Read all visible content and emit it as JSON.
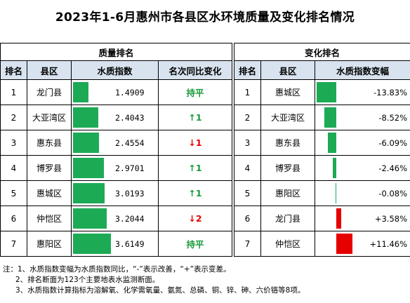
{
  "title": "2023年1-6月惠州市各县区水环境质量及变化排名情况",
  "quality": {
    "section_title": "质量排名",
    "headers": [
      "排名",
      "县区",
      "水质指数",
      "名次同比变化"
    ],
    "max_index": 3.6149,
    "rows": [
      {
        "rank": "1",
        "county": "龙门县",
        "index": 1.4909,
        "index_text": "1.4909",
        "change": "持平",
        "dir": "same"
      },
      {
        "rank": "2",
        "county": "大亚湾区",
        "index": 2.4043,
        "index_text": "2.4043",
        "change": "1",
        "dir": "up"
      },
      {
        "rank": "3",
        "county": "惠东县",
        "index": 2.4554,
        "index_text": "2.4554",
        "change": "1",
        "dir": "down"
      },
      {
        "rank": "4",
        "county": "博罗县",
        "index": 2.9701,
        "index_text": "2.9701",
        "change": "1",
        "dir": "up"
      },
      {
        "rank": "5",
        "county": "惠城区",
        "index": 3.0193,
        "index_text": "3.0193",
        "change": "1",
        "dir": "up"
      },
      {
        "rank": "6",
        "county": "仲恺区",
        "index": 3.2044,
        "index_text": "3.2044",
        "change": "2",
        "dir": "down"
      },
      {
        "rank": "7",
        "county": "惠阳区",
        "index": 3.6149,
        "index_text": "3.6149",
        "change": "持平",
        "dir": "same"
      }
    ]
  },
  "variation": {
    "section_title": "变化排名",
    "headers": [
      "排名",
      "县区",
      "水质指数变幅"
    ],
    "max_abs": 13.83,
    "rows": [
      {
        "rank": "1",
        "county": "惠城区",
        "value": -13.83,
        "value_text": "-13.83%"
      },
      {
        "rank": "2",
        "county": "大亚湾区",
        "value": -8.52,
        "value_text": "-8.52%"
      },
      {
        "rank": "3",
        "county": "惠东县",
        "value": -6.09,
        "value_text": "-6.09%"
      },
      {
        "rank": "4",
        "county": "博罗县",
        "value": -2.46,
        "value_text": "-2.46%"
      },
      {
        "rank": "5",
        "county": "惠阳区",
        "value": -0.08,
        "value_text": "-0.08%"
      },
      {
        "rank": "6",
        "county": "龙门县",
        "value": 3.58,
        "value_text": "+3.58%"
      },
      {
        "rank": "7",
        "county": "仲恺区",
        "value": 11.46,
        "value_text": "+11.46%"
      }
    ]
  },
  "notes": [
    "注：1、水质指数变幅为水质指数同比，“-”表示改善，“+”表示变差。",
    "2、排名断面为123个主要地表水监测断面。",
    "3、水质指数计算指标为溶解氧、化学需氧量、氨氮、总磷、铜、锌、砷、六价铬等8项。"
  ],
  "colors": {
    "improve": "#1daa55",
    "worsen": "#e60000",
    "header_bg": "#d8e3ef"
  },
  "icons": {
    "up": "up-arrow-icon",
    "down": "down-arrow-icon"
  }
}
